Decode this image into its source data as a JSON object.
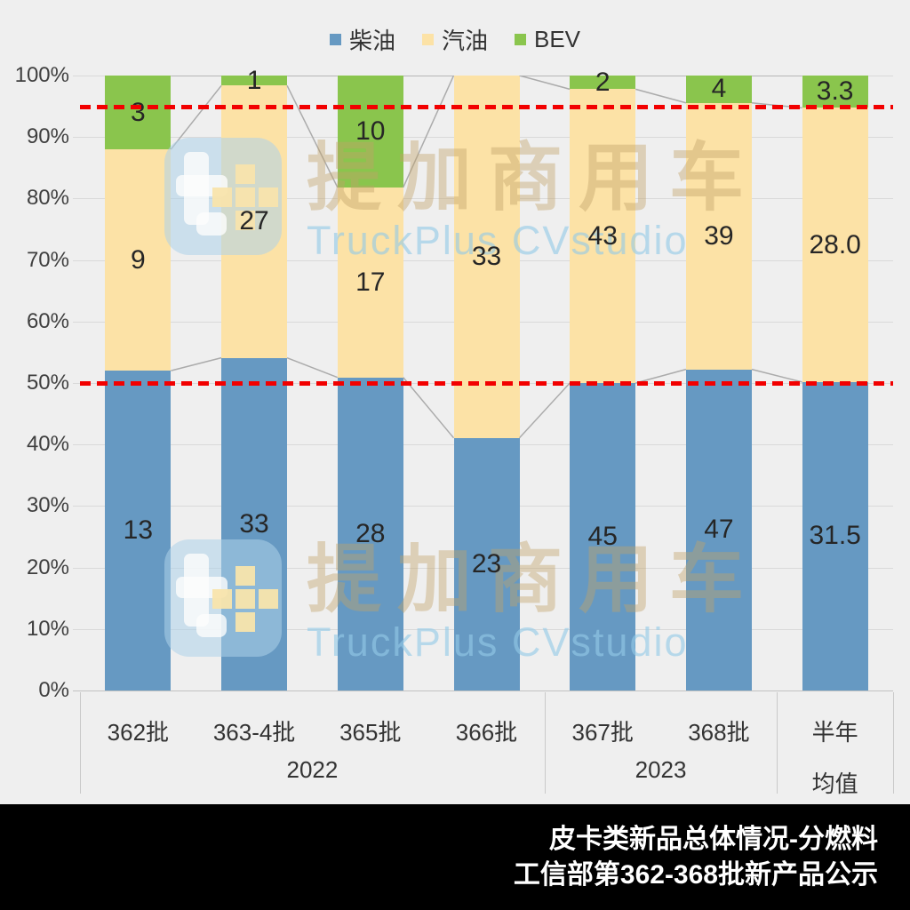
{
  "legend": {
    "items": [
      {
        "label": "柴油",
        "color": "#6699C2"
      },
      {
        "label": "汽油",
        "color": "#FCE2A6"
      },
      {
        "label": "BEV",
        "color": "#8AC54D"
      }
    ]
  },
  "chart_data": {
    "type": "bar",
    "variant": "100%-stacked-column",
    "categories": [
      "362批",
      "363-4批",
      "365批",
      "366批",
      "367批",
      "368批",
      "半年均值"
    ],
    "category_display": [
      "362批",
      "363-4批",
      "365批",
      "366批",
      "367批",
      "368批",
      "半年\n均值"
    ],
    "groups": [
      {
        "label": "2022",
        "from": 0,
        "to": 3
      },
      {
        "label": "2023",
        "from": 4,
        "to": 5
      },
      {
        "label": "",
        "from": 6,
        "to": 6
      }
    ],
    "series": [
      {
        "name": "柴油",
        "color": "#6699C2",
        "values": [
          13,
          33,
          28,
          23,
          45,
          47,
          31.5
        ],
        "labels": [
          "13",
          "33",
          "28",
          "23",
          "45",
          "47",
          "31.5"
        ]
      },
      {
        "name": "汽油",
        "color": "#FCE2A6",
        "values": [
          9,
          27,
          17,
          33,
          43,
          39,
          28.0
        ],
        "labels": [
          "9",
          "27",
          "17",
          "33",
          "43",
          "39",
          "28.0"
        ]
      },
      {
        "name": "BEV",
        "color": "#8AC54D",
        "values": [
          3,
          1,
          10,
          0,
          2,
          4,
          3.3
        ],
        "labels": [
          "3",
          "1",
          "10",
          "",
          "2",
          "4",
          "3.3"
        ]
      }
    ],
    "y_axis": {
      "min": 0,
      "max": 100,
      "step": 10,
      "tick_labels": [
        "0%",
        "10%",
        "20%",
        "30%",
        "40%",
        "50%",
        "60%",
        "70%",
        "80%",
        "90%",
        "100%"
      ]
    },
    "reference_lines": [
      {
        "value": 50,
        "color": "#F20000",
        "style": "dashed"
      },
      {
        "value": 95,
        "color": "#F20000",
        "style": "dashed"
      }
    ],
    "connector_lines": {
      "show": true,
      "color": "#ABABAB"
    },
    "grid": "horizontal"
  },
  "watermark": {
    "cn": "提加商用车",
    "en": "TruckPlus CVstudio",
    "logo": "truckplus-logo"
  },
  "footer": {
    "line1": "皮卡类新品总体情况-分燃料",
    "line2": "工信部第362-368批新产品公示"
  }
}
